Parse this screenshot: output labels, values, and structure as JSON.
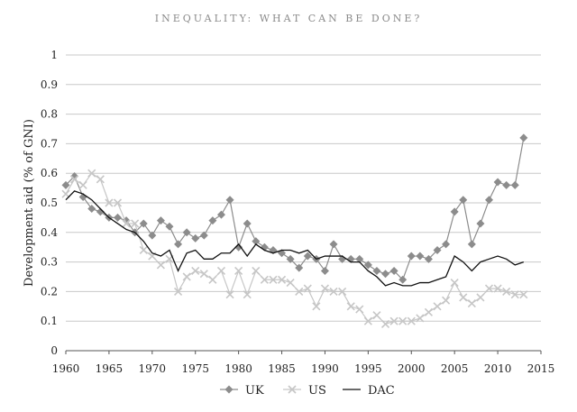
{
  "header": {
    "running_title": "INEQUALITY: WHAT CAN BE DONE?"
  },
  "colors": {
    "uk": "#8c8c8c",
    "us": "#c6c6c6",
    "dac": "#111111",
    "grid": "#c8c8c8",
    "axis": "#555555"
  },
  "chart_data": {
    "type": "line",
    "title": "",
    "xlabel": "",
    "ylabel": "Development aid (% of GNI)",
    "xlim": [
      1960,
      2015
    ],
    "ylim": [
      0,
      1
    ],
    "xticks": [
      1960,
      1965,
      1970,
      1975,
      1980,
      1985,
      1990,
      1995,
      2000,
      2005,
      2010,
      2015
    ],
    "yticks": [
      0,
      0.1,
      0.2,
      0.3,
      0.4,
      0.5,
      0.6,
      0.7,
      0.8,
      0.9,
      1
    ],
    "grid": "horizontal",
    "legend": "bottom",
    "x": [
      1960,
      1961,
      1962,
      1963,
      1964,
      1965,
      1966,
      1967,
      1968,
      1969,
      1970,
      1971,
      1972,
      1973,
      1974,
      1975,
      1976,
      1977,
      1978,
      1979,
      1980,
      1981,
      1982,
      1983,
      1984,
      1985,
      1986,
      1987,
      1988,
      1989,
      1990,
      1991,
      1992,
      1993,
      1994,
      1995,
      1996,
      1997,
      1998,
      1999,
      2000,
      2001,
      2002,
      2003,
      2004,
      2005,
      2006,
      2007,
      2008,
      2009,
      2010,
      2011,
      2012,
      2013
    ],
    "series": [
      {
        "name": "UK",
        "marker": "diamond",
        "values": [
          0.56,
          0.59,
          0.52,
          0.48,
          0.47,
          0.45,
          0.45,
          0.44,
          0.4,
          0.43,
          0.39,
          0.44,
          0.42,
          0.36,
          0.4,
          0.38,
          0.39,
          0.44,
          0.46,
          0.51,
          0.35,
          0.43,
          0.37,
          0.35,
          0.34,
          0.33,
          0.31,
          0.28,
          0.32,
          0.31,
          0.27,
          0.36,
          0.31,
          0.31,
          0.31,
          0.29,
          0.27,
          0.26,
          0.27,
          0.24,
          0.32,
          0.32,
          0.31,
          0.34,
          0.36,
          0.47,
          0.51,
          0.36,
          0.43,
          0.51,
          0.57,
          0.56,
          0.56,
          0.72
        ]
      },
      {
        "name": "US",
        "marker": "cross",
        "values": [
          0.53,
          0.58,
          0.56,
          0.6,
          0.58,
          0.5,
          0.5,
          0.43,
          0.43,
          0.34,
          0.32,
          0.29,
          0.31,
          0.2,
          0.25,
          0.27,
          0.26,
          0.24,
          0.27,
          0.19,
          0.27,
          0.19,
          0.27,
          0.24,
          0.24,
          0.24,
          0.23,
          0.2,
          0.21,
          0.15,
          0.21,
          0.2,
          0.2,
          0.15,
          0.14,
          0.1,
          0.12,
          0.09,
          0.1,
          0.1,
          0.1,
          0.11,
          0.13,
          0.15,
          0.17,
          0.23,
          0.18,
          0.16,
          0.18,
          0.21,
          0.21,
          0.2,
          0.19,
          0.19
        ]
      },
      {
        "name": "DAC",
        "marker": "none",
        "values": [
          0.51,
          0.54,
          0.53,
          0.51,
          0.48,
          0.45,
          0.43,
          0.41,
          0.4,
          0.37,
          0.33,
          0.32,
          0.34,
          0.27,
          0.33,
          0.34,
          0.31,
          0.31,
          0.33,
          0.33,
          0.36,
          0.32,
          0.36,
          0.34,
          0.33,
          0.34,
          0.34,
          0.33,
          0.34,
          0.31,
          0.32,
          0.32,
          0.32,
          0.3,
          0.3,
          0.27,
          0.25,
          0.22,
          0.23,
          0.22,
          0.22,
          0.23,
          0.23,
          0.24,
          0.25,
          0.32,
          0.3,
          0.27,
          0.3,
          0.31,
          0.32,
          0.31,
          0.29,
          0.3
        ]
      }
    ]
  }
}
